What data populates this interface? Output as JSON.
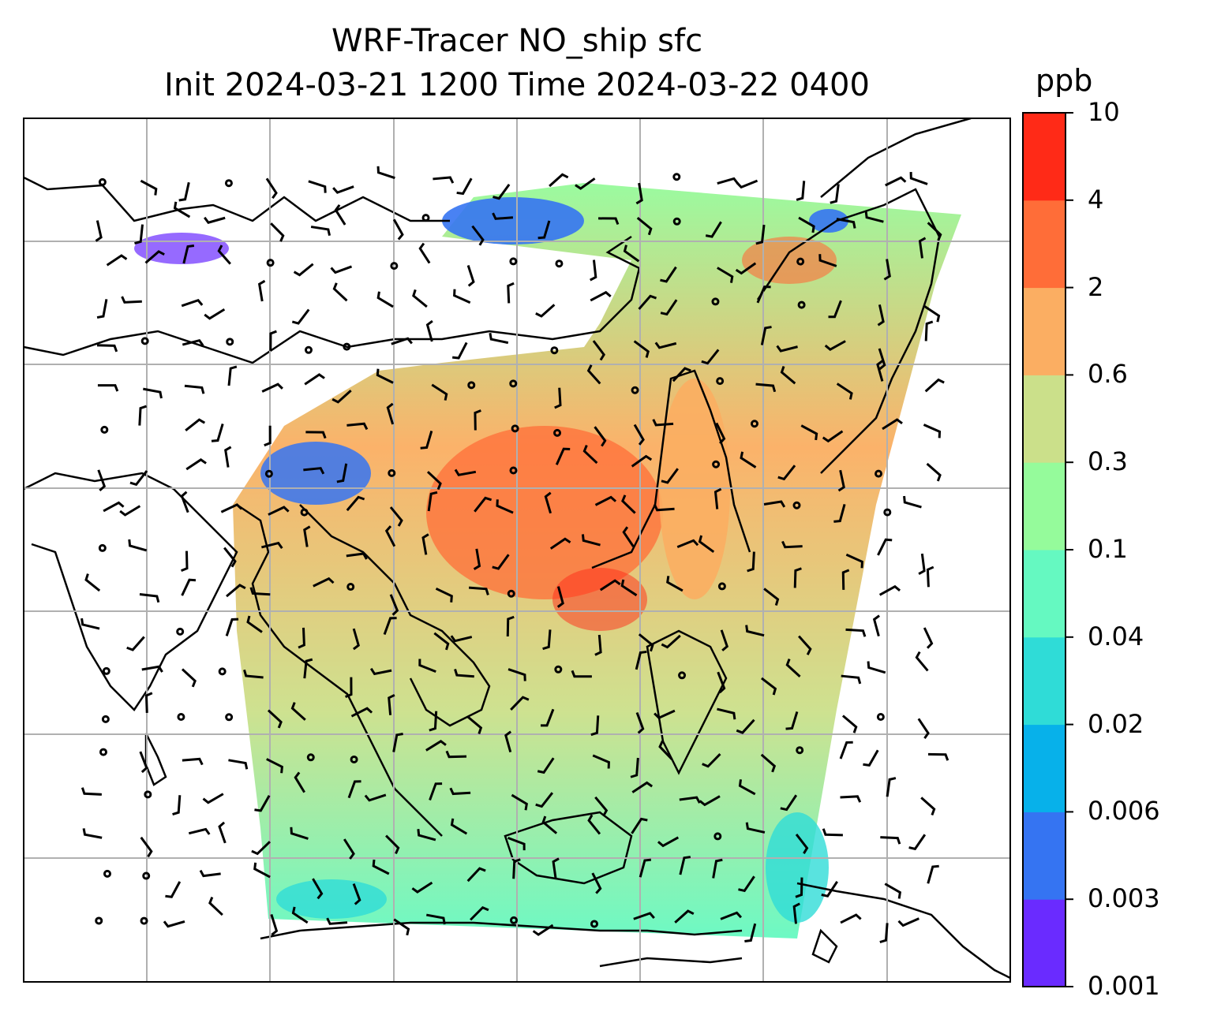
{
  "chart_data": {
    "type": "heatmap",
    "title": "WRF-Tracer NO_ship sfc",
    "subtitle": "Init 2024-03-21 1200 Time 2024-03-22 0400",
    "colorbar": {
      "unit": "ppb",
      "levels": [
        "0.001",
        "0.003",
        "0.006",
        "0.02",
        "0.04",
        "0.1",
        "0.3",
        "0.6",
        "2",
        "4",
        "10"
      ],
      "colors": [
        "#6a2bff",
        "#3574f2",
        "#07b1ea",
        "#2fdcd7",
        "#65f9c1",
        "#95fb9b",
        "#cbe08a",
        "#fbae62",
        "#ff6d38",
        "#ff2a17"
      ]
    },
    "grid": true
  }
}
